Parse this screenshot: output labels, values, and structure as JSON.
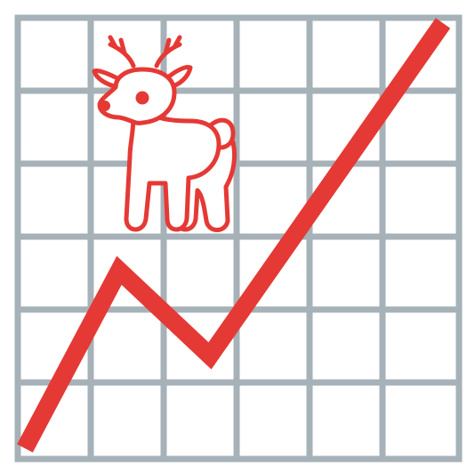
{
  "colors": {
    "background": "#ffffff",
    "grid": "#a6b1b8",
    "trend_line": "#e53935",
    "deer_outline": "#e53935",
    "deer_fill": "#ffffff"
  },
  "icons": {
    "grid": "chart-grid-icon",
    "trend": "trend-line-icon",
    "deer": "deer-icon"
  }
}
